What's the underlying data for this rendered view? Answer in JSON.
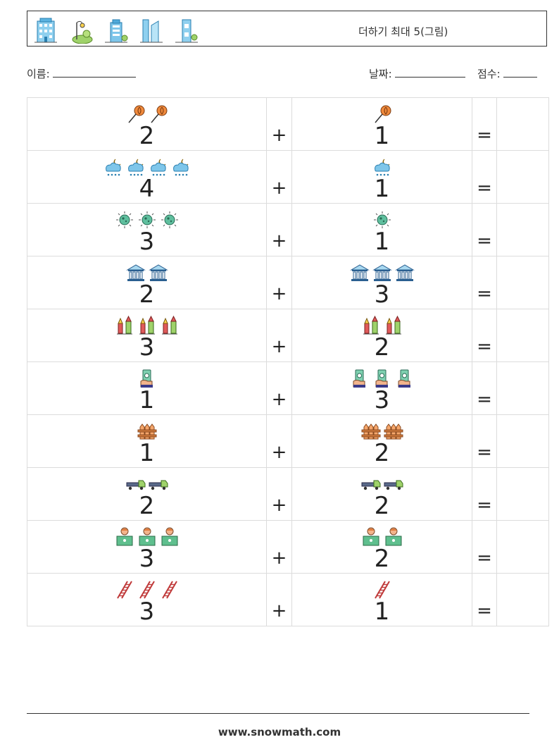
{
  "header": {
    "title": "더하기 최대 5(그림)",
    "icons": [
      "office-building-icon",
      "park-lamp-icon",
      "city-building-icon",
      "skyscrapers-icon",
      "tower-tree-icon"
    ]
  },
  "info": {
    "name_label": "이름:",
    "date_label": "날짜:",
    "score_label": "점수:"
  },
  "problems": [
    {
      "a": "2",
      "b": "1",
      "icon": "lollipop"
    },
    {
      "a": "4",
      "b": "1",
      "icon": "night-rain-cloud"
    },
    {
      "a": "3",
      "b": "1",
      "icon": "virus"
    },
    {
      "a": "2",
      "b": "3",
      "icon": "bank"
    },
    {
      "a": "3",
      "b": "2",
      "icon": "fireworks"
    },
    {
      "a": "1",
      "b": "3",
      "icon": "hand-cash"
    },
    {
      "a": "1",
      "b": "2",
      "icon": "fence"
    },
    {
      "a": "2",
      "b": "2",
      "icon": "truck"
    },
    {
      "a": "3",
      "b": "2",
      "icon": "laptop-user"
    },
    {
      "a": "3",
      "b": "1",
      "icon": "ladder"
    }
  ],
  "operators": {
    "plus": "+",
    "equals": "="
  },
  "footer": {
    "site": "www.snowmath.com"
  }
}
